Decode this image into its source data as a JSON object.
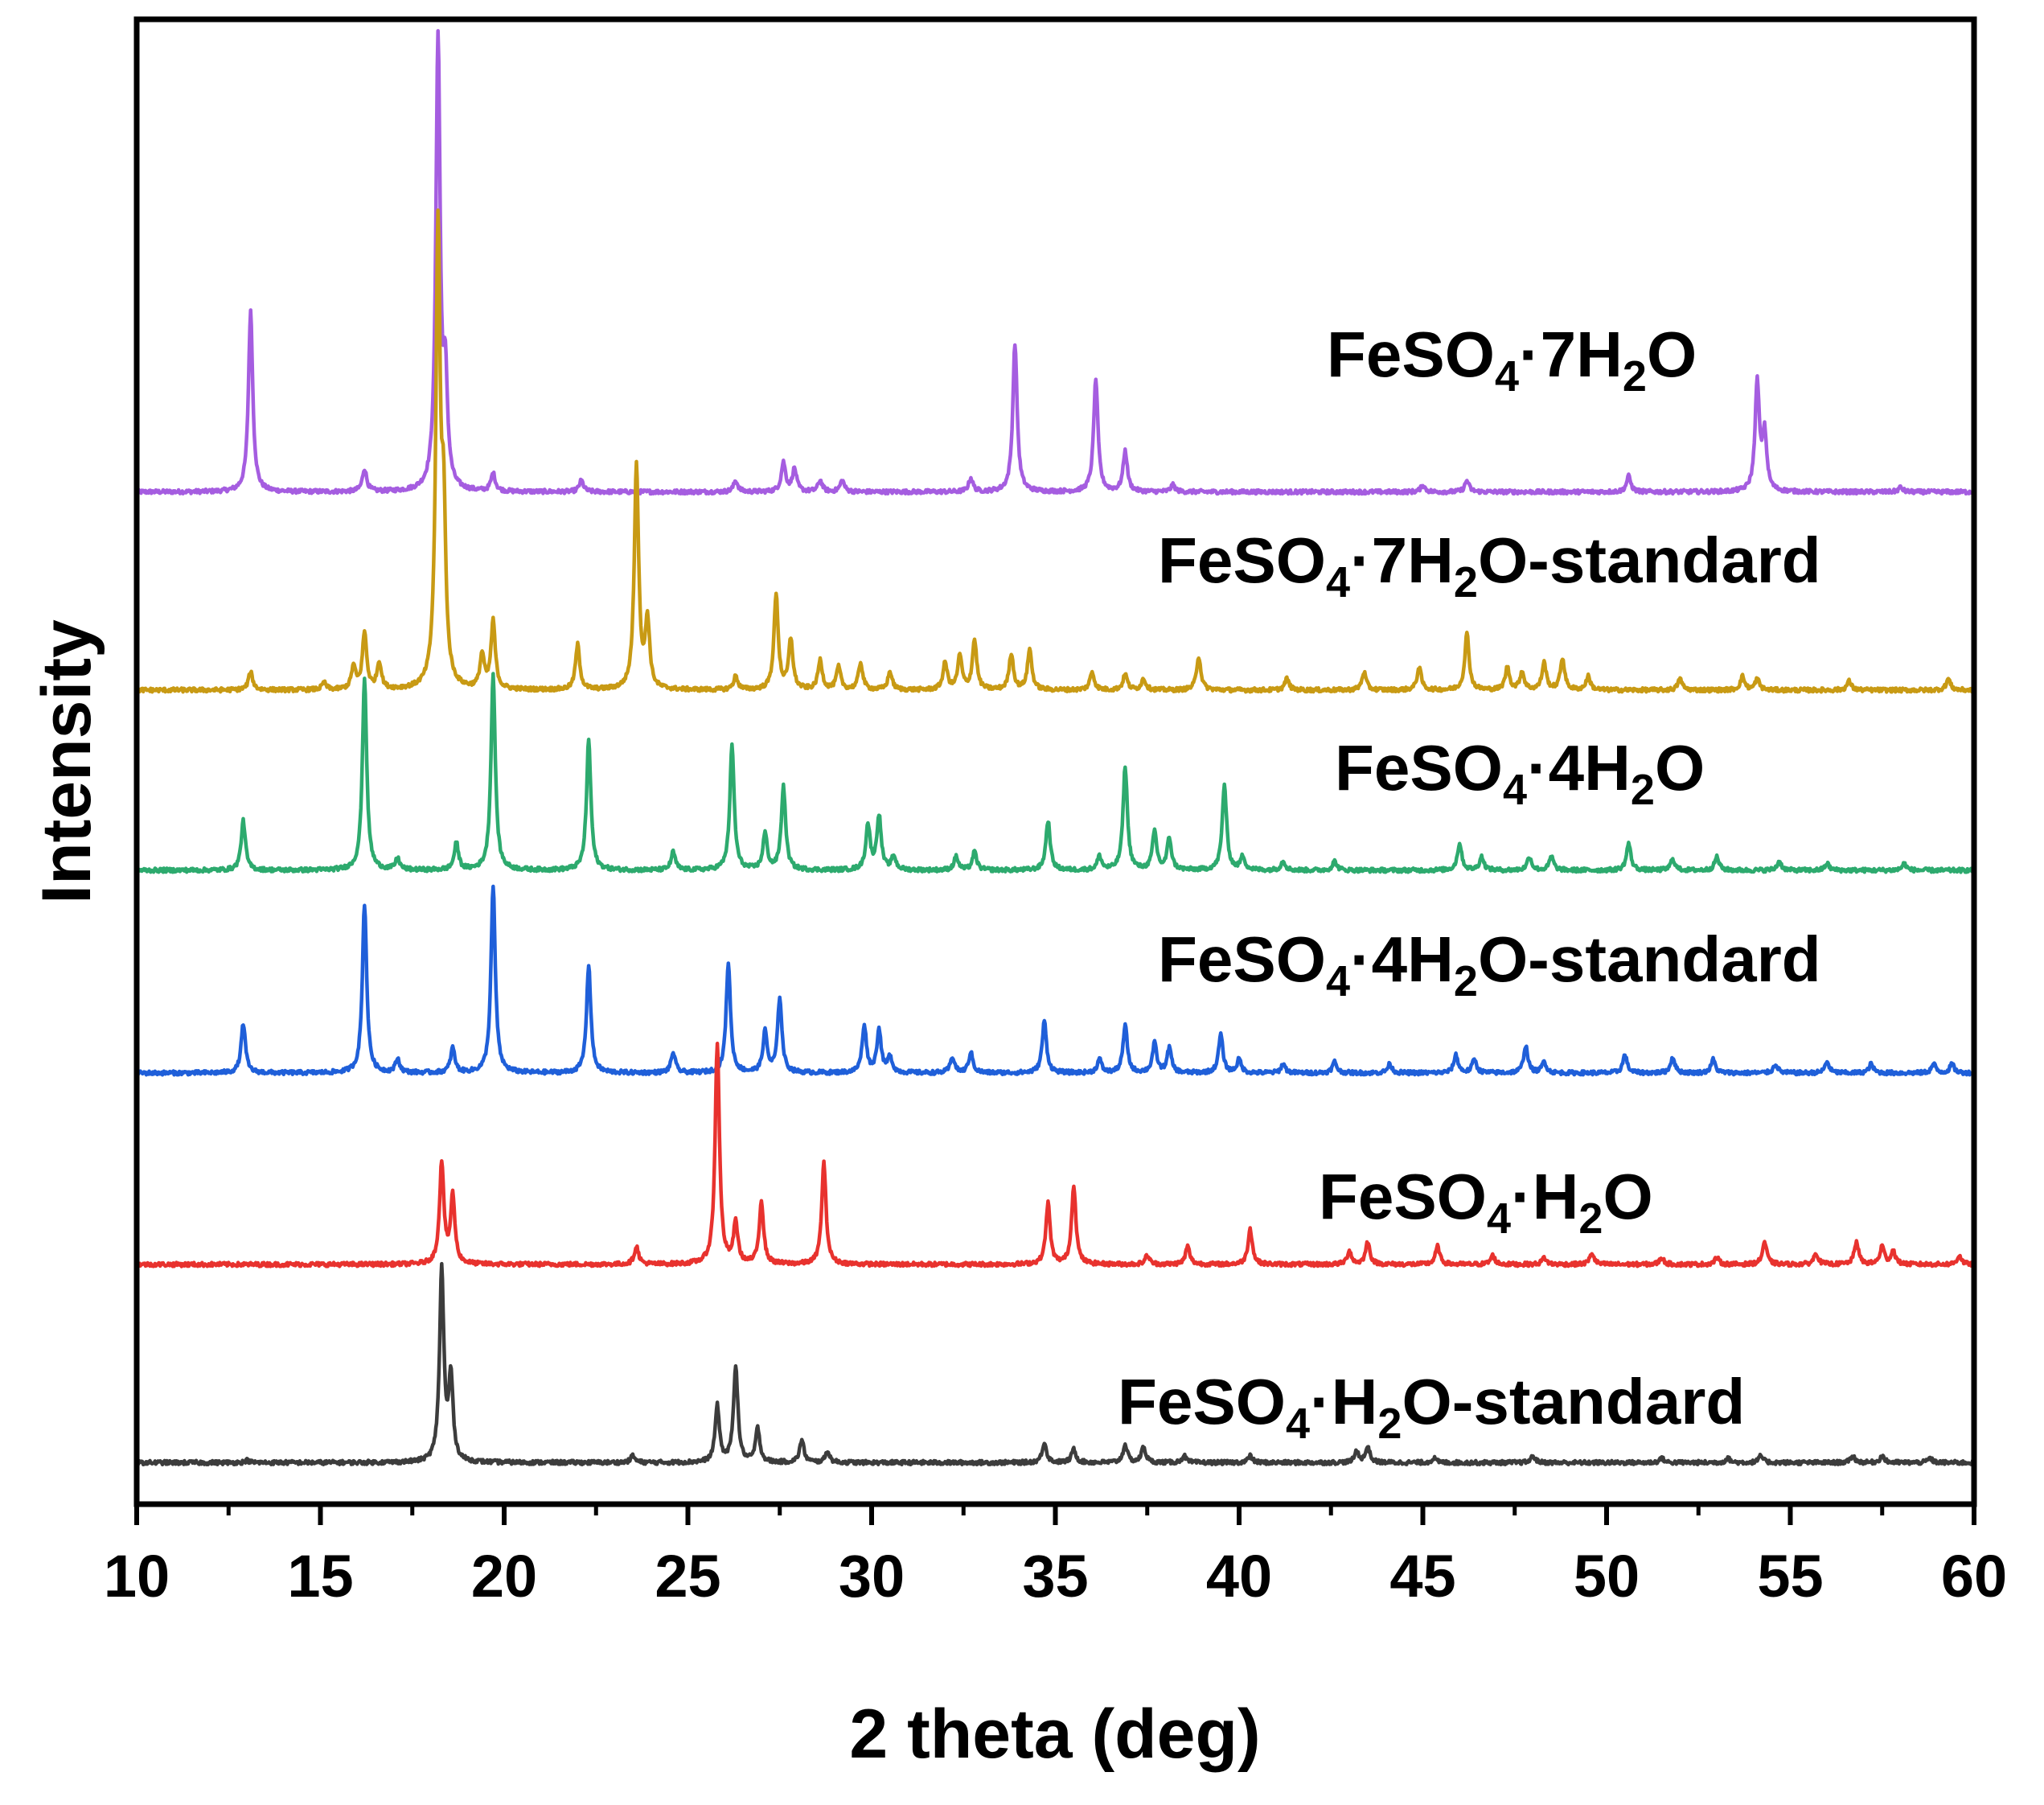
{
  "chart_data": {
    "type": "line",
    "title": "",
    "xlabel": "2 theta (deg)",
    "ylabel": "Intensity",
    "xlim": [
      10,
      60
    ],
    "xticks": [
      10,
      15,
      20,
      25,
      30,
      35,
      40,
      45,
      50,
      55,
      60
    ],
    "grid": false,
    "legend": "inline labels on right",
    "y_units": "arbitrary (stacked, offset per series)",
    "series": [
      {
        "name": "FeSO4·7H2O",
        "label_parts": {
          "a": "FeSO",
          "b": "4",
          "c": "·7H",
          "d": "2",
          "e": "O"
        },
        "color": "#A55DE0",
        "baseline": 1.68,
        "peaks": [
          [
            13.1,
            0.8
          ],
          [
            16.2,
            0.1
          ],
          [
            18.2,
            2.0
          ],
          [
            18.4,
            0.45
          ],
          [
            19.7,
            0.08
          ],
          [
            22.1,
            0.05
          ],
          [
            26.3,
            0.05
          ],
          [
            27.6,
            0.13
          ],
          [
            27.9,
            0.1
          ],
          [
            28.6,
            0.05
          ],
          [
            29.2,
            0.05
          ],
          [
            32.7,
            0.06
          ],
          [
            33.9,
            0.66
          ],
          [
            36.1,
            0.5
          ],
          [
            36.9,
            0.18
          ],
          [
            38.2,
            0.03
          ],
          [
            45.0,
            0.03
          ],
          [
            46.2,
            0.05
          ],
          [
            50.6,
            0.07
          ],
          [
            54.1,
            0.48
          ],
          [
            54.3,
            0.25
          ],
          [
            58.0,
            0.02
          ]
        ]
      },
      {
        "name": "FeSO4·7H2O-standard",
        "label_parts": {
          "a": "FeSO",
          "b": "4",
          "c": "·7H",
          "d": "2",
          "e": "O-standard"
        },
        "color": "#C89A14",
        "baseline": 0.8,
        "peaks": [
          [
            13.1,
            0.08
          ],
          [
            15.1,
            0.03
          ],
          [
            15.9,
            0.1
          ],
          [
            16.2,
            0.25
          ],
          [
            16.6,
            0.12
          ],
          [
            18.2,
            2.0
          ],
          [
            18.35,
            0.7
          ],
          [
            19.4,
            0.15
          ],
          [
            19.7,
            0.3
          ],
          [
            22.0,
            0.2
          ],
          [
            23.6,
            1.0
          ],
          [
            23.9,
            0.3
          ],
          [
            26.3,
            0.06
          ],
          [
            27.4,
            0.42
          ],
          [
            27.8,
            0.22
          ],
          [
            28.6,
            0.13
          ],
          [
            29.1,
            0.1
          ],
          [
            29.7,
            0.12
          ],
          [
            30.5,
            0.08
          ],
          [
            32.0,
            0.12
          ],
          [
            32.4,
            0.15
          ],
          [
            32.8,
            0.22
          ],
          [
            33.8,
            0.16
          ],
          [
            34.3,
            0.18
          ],
          [
            36.0,
            0.08
          ],
          [
            36.9,
            0.07
          ],
          [
            37.4,
            0.05
          ],
          [
            38.9,
            0.15
          ],
          [
            41.3,
            0.05
          ],
          [
            43.4,
            0.08
          ],
          [
            44.9,
            0.1
          ],
          [
            46.2,
            0.25
          ],
          [
            47.3,
            0.1
          ],
          [
            47.7,
            0.08
          ],
          [
            48.3,
            0.12
          ],
          [
            48.8,
            0.14
          ],
          [
            49.5,
            0.06
          ],
          [
            52.0,
            0.05
          ],
          [
            53.7,
            0.06
          ],
          [
            54.1,
            0.05
          ],
          [
            56.6,
            0.04
          ],
          [
            59.3,
            0.05
          ]
        ]
      },
      {
        "name": "FeSO4·4H2O",
        "label_parts": {
          "a": "FeSO",
          "b": "4",
          "c": "·4H",
          "d": "2",
          "e": "O"
        },
        "color": "#2DAA6E",
        "baseline": 0.0,
        "peaks": [
          [
            12.9,
            0.22
          ],
          [
            16.2,
            0.85
          ],
          [
            17.1,
            0.05
          ],
          [
            18.7,
            0.12
          ],
          [
            19.7,
            0.87
          ],
          [
            22.3,
            0.58
          ],
          [
            24.6,
            0.08
          ],
          [
            26.2,
            0.55
          ],
          [
            27.1,
            0.16
          ],
          [
            27.6,
            0.37
          ],
          [
            29.9,
            0.2
          ],
          [
            30.2,
            0.24
          ],
          [
            30.6,
            0.06
          ],
          [
            32.3,
            0.06
          ],
          [
            32.8,
            0.08
          ],
          [
            34.8,
            0.22
          ],
          [
            36.2,
            0.06
          ],
          [
            36.9,
            0.46
          ],
          [
            37.7,
            0.17
          ],
          [
            38.1,
            0.14
          ],
          [
            39.6,
            0.38
          ],
          [
            40.1,
            0.06
          ],
          [
            41.2,
            0.04
          ],
          [
            42.6,
            0.04
          ],
          [
            46.0,
            0.12
          ],
          [
            46.6,
            0.06
          ],
          [
            47.9,
            0.06
          ],
          [
            48.5,
            0.06
          ],
          [
            50.6,
            0.12
          ],
          [
            51.8,
            0.05
          ],
          [
            53.0,
            0.06
          ],
          [
            54.7,
            0.04
          ],
          [
            56.0,
            0.03
          ],
          [
            58.1,
            0.03
          ]
        ]
      },
      {
        "name": "FeSO4·4H2O-standard",
        "label_parts": {
          "a": "FeSO",
          "b": "4",
          "c": "·4H",
          "d": "2",
          "e": "O-standard"
        },
        "color": "#1F5FD9",
        "baseline": -0.9,
        "peaks": [
          [
            12.9,
            0.22
          ],
          [
            16.2,
            0.75
          ],
          [
            17.1,
            0.06
          ],
          [
            18.6,
            0.11
          ],
          [
            19.7,
            0.83
          ],
          [
            22.3,
            0.48
          ],
          [
            24.6,
            0.09
          ],
          [
            26.1,
            0.49
          ],
          [
            27.1,
            0.18
          ],
          [
            27.5,
            0.33
          ],
          [
            29.8,
            0.21
          ],
          [
            30.2,
            0.19
          ],
          [
            30.5,
            0.07
          ],
          [
            32.2,
            0.07
          ],
          [
            32.7,
            0.09
          ],
          [
            34.7,
            0.23
          ],
          [
            36.2,
            0.06
          ],
          [
            36.9,
            0.21
          ],
          [
            37.7,
            0.13
          ],
          [
            38.1,
            0.11
          ],
          [
            39.5,
            0.17
          ],
          [
            40.0,
            0.06
          ],
          [
            41.2,
            0.04
          ],
          [
            42.6,
            0.05
          ],
          [
            44.1,
            0.04
          ],
          [
            45.9,
            0.08
          ],
          [
            46.4,
            0.06
          ],
          [
            47.8,
            0.12
          ],
          [
            48.3,
            0.05
          ],
          [
            50.5,
            0.08
          ],
          [
            51.8,
            0.07
          ],
          [
            52.9,
            0.06
          ],
          [
            54.6,
            0.04
          ],
          [
            56.0,
            0.05
          ],
          [
            57.2,
            0.04
          ],
          [
            58.9,
            0.04
          ],
          [
            59.4,
            0.04
          ]
        ]
      },
      {
        "name": "FeSO4·H2O",
        "label_parts": {
          "a": "FeSO",
          "b": "4",
          "c": "·H",
          "d": "2",
          "e": "O"
        },
        "color": "#E8322E",
        "baseline": -1.75,
        "peaks": [
          [
            18.3,
            0.45
          ],
          [
            18.6,
            0.3
          ],
          [
            23.6,
            0.08
          ],
          [
            25.8,
            0.98
          ],
          [
            26.3,
            0.18
          ],
          [
            27.0,
            0.28
          ],
          [
            28.7,
            0.45
          ],
          [
            34.8,
            0.27
          ],
          [
            35.5,
            0.35
          ],
          [
            37.5,
            0.04
          ],
          [
            38.6,
            0.08
          ],
          [
            40.3,
            0.16
          ],
          [
            43.0,
            0.06
          ],
          [
            43.5,
            0.1
          ],
          [
            45.4,
            0.08
          ],
          [
            46.9,
            0.04
          ],
          [
            48.3,
            0.03
          ],
          [
            49.6,
            0.05
          ],
          [
            51.5,
            0.03
          ],
          [
            53.0,
            0.03
          ],
          [
            54.3,
            0.1
          ],
          [
            55.7,
            0.05
          ],
          [
            56.8,
            0.1
          ],
          [
            57.5,
            0.08
          ],
          [
            57.8,
            0.06
          ],
          [
            59.6,
            0.04
          ]
        ]
      },
      {
        "name": "FeSO4·H2O-standard",
        "label_parts": {
          "a": "FeSO",
          "b": "4",
          "c": "·H",
          "d": "2",
          "e": "O-standard"
        },
        "color": "#3C3C3C",
        "baseline": -2.63,
        "peaks": [
          [
            13.0,
            0.01
          ],
          [
            18.3,
            0.85
          ],
          [
            18.55,
            0.37
          ],
          [
            23.5,
            0.03
          ],
          [
            25.8,
            0.25
          ],
          [
            26.3,
            0.43
          ],
          [
            26.9,
            0.15
          ],
          [
            28.1,
            0.1
          ],
          [
            28.8,
            0.05
          ],
          [
            34.7,
            0.09
          ],
          [
            35.5,
            0.06
          ],
          [
            36.9,
            0.08
          ],
          [
            37.4,
            0.07
          ],
          [
            38.5,
            0.03
          ],
          [
            40.3,
            0.03
          ],
          [
            43.2,
            0.05
          ],
          [
            43.5,
            0.07
          ],
          [
            45.3,
            0.02
          ],
          [
            48.0,
            0.03
          ],
          [
            51.5,
            0.02
          ],
          [
            53.3,
            0.02
          ],
          [
            54.2,
            0.03
          ],
          [
            56.7,
            0.03
          ],
          [
            57.5,
            0.03
          ],
          [
            58.8,
            0.02
          ]
        ]
      }
    ]
  }
}
